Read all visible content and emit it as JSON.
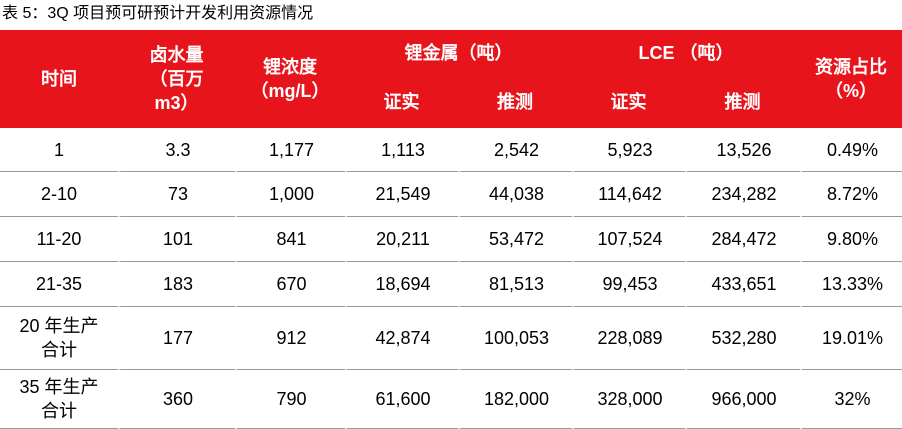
{
  "title": "表 5：3Q 项目预可研预计开发利用资源情况",
  "table": {
    "header": {
      "time": "时间",
      "brine": "卤水量\n（百万\nm3）",
      "conc": "锂浓度\n（mg/L）",
      "li_metal": "锂金属（吨）",
      "lce": "LCE （吨）",
      "share": "资源占比\n（%）",
      "sub": [
        "证实",
        "推测",
        "证实",
        "推测"
      ]
    },
    "rows": [
      [
        "1",
        "3.3",
        "1,177",
        "1,113",
        "2,542",
        "5,923",
        "13,526",
        "0.49%"
      ],
      [
        "2-10",
        "73",
        "1,000",
        "21,549",
        "44,038",
        "114,642",
        "234,282",
        "8.72%"
      ],
      [
        "11-20",
        "101",
        "841",
        "20,211",
        "53,472",
        "107,524",
        "284,472",
        "9.80%"
      ],
      [
        "21-35",
        "183",
        "670",
        "18,694",
        "81,513",
        "99,453",
        "433,651",
        "13.33%"
      ],
      [
        "20 年生产\n合计",
        "177",
        "912",
        "42,874",
        "100,053",
        "228,089",
        "532,280",
        "19.01%"
      ],
      [
        "35 年生产\n合计",
        "360",
        "790",
        "61,600",
        "182,000",
        "328,000",
        "966,000",
        "32%"
      ]
    ]
  }
}
